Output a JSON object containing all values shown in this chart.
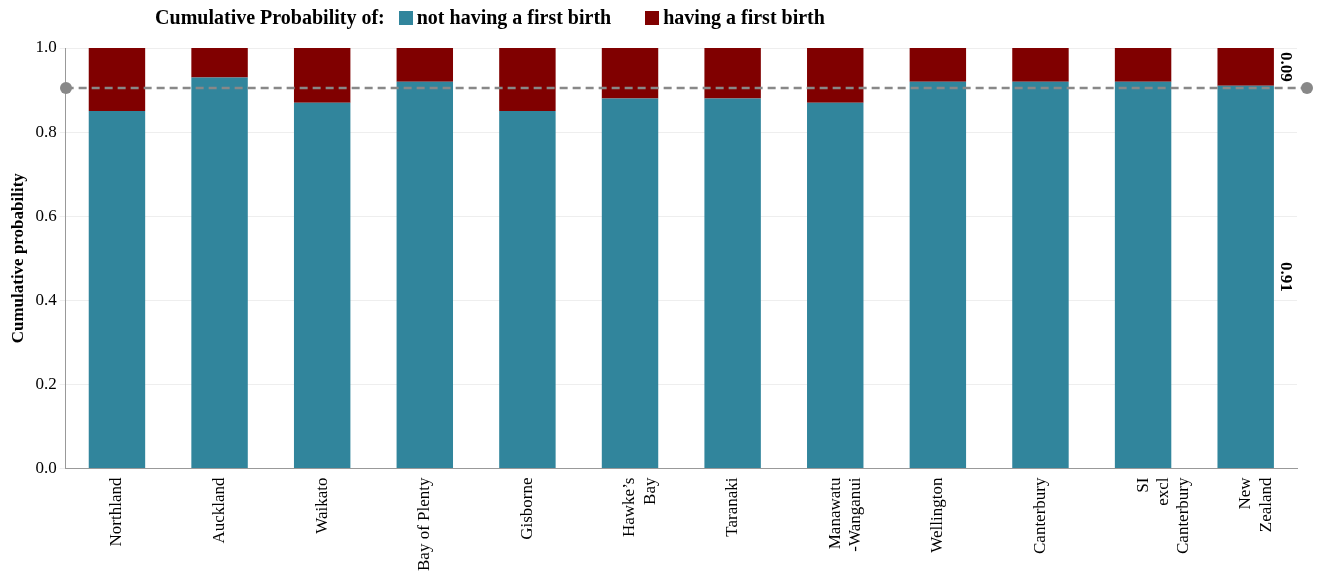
{
  "chart_data": {
    "type": "bar",
    "stacked": true,
    "legend_title": "Cumulative Probability of:",
    "ylabel": "Cumulative probability",
    "categories": [
      "Northland",
      "Auckland",
      "Waikato",
      "Bay of Plenty",
      "Gisborne",
      "Hawke’s\nBay",
      "Taranaki",
      "Manawatu\n-Wanganui",
      "Wellington",
      "Canterbury",
      "SI\nexcl\nCanterbury",
      "New\nZealand"
    ],
    "series": [
      {
        "name": "not having a first birth",
        "color": "#31859c",
        "values": [
          0.85,
          0.93,
          0.87,
          0.92,
          0.85,
          0.88,
          0.88,
          0.87,
          0.92,
          0.92,
          0.92,
          0.91
        ],
        "value_labels": [
          null,
          null,
          null,
          null,
          null,
          null,
          null,
          null,
          null,
          null,
          null,
          "0.91"
        ]
      },
      {
        "name": "having a first birth",
        "color": "#800000",
        "values": [
          0.15,
          0.07,
          0.13,
          0.08,
          0.15,
          0.12,
          0.12,
          0.13,
          0.08,
          0.08,
          0.08,
          0.09
        ],
        "value_labels": [
          null,
          null,
          null,
          null,
          null,
          null,
          null,
          null,
          null,
          null,
          null,
          "0.09"
        ]
      }
    ],
    "ylim": [
      0,
      1
    ],
    "yticks": [
      {
        "value": 0,
        "label": "0.0"
      },
      {
        "value": 0.2,
        "label": "0.2"
      },
      {
        "value": 0.4,
        "label": "0.4"
      },
      {
        "value": 0.6,
        "label": "0.6"
      },
      {
        "value": 0.8,
        "label": "0.8"
      },
      {
        "value": 1,
        "label": "1.0"
      }
    ],
    "grid": "y",
    "legend": "top",
    "ref_lines": [
      {
        "axis": "y",
        "value": 0.905,
        "color": "#888888",
        "line_style": "dashed"
      }
    ]
  }
}
